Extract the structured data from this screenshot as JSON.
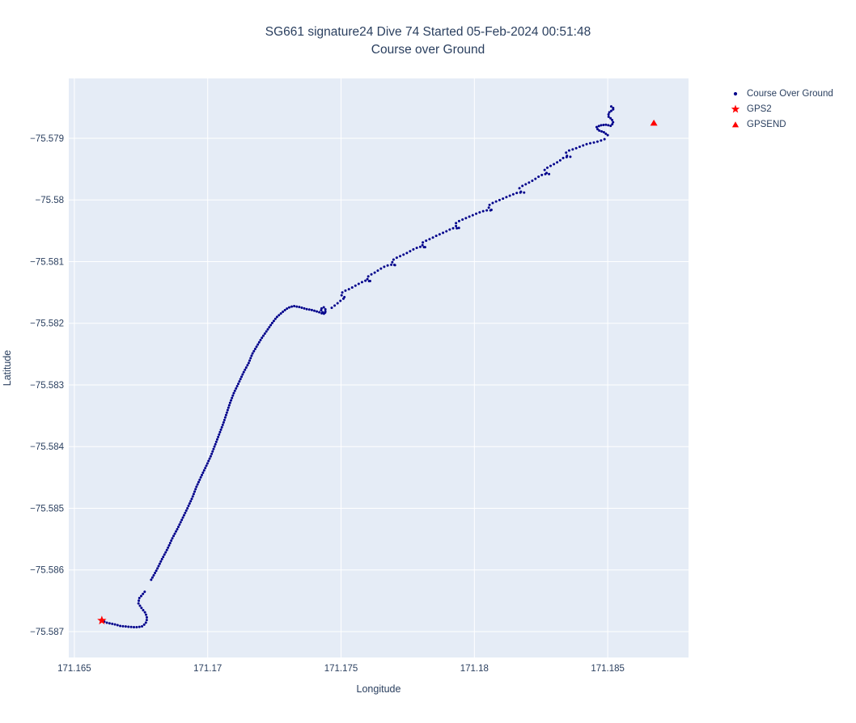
{
  "figure": {
    "title_line1": "SG661 signature24 Dive 74 Started 05-Feb-2024 00:51:48",
    "title_line2": "Course over Ground",
    "xaxis_title": "Longitude",
    "yaxis_title": "Latitude"
  },
  "colors": {
    "page_background": "#ffffff",
    "plot_background": "#e5ecf6",
    "gridline": "#ffffff",
    "text": "#2a3f5f",
    "track": "#00008b",
    "gps_marker": "#ff0000"
  },
  "legend": {
    "items": [
      {
        "label": "Course Over Ground",
        "marker": "dot",
        "color": "#00008b"
      },
      {
        "label": "GPS2",
        "marker": "star",
        "color": "#ff0000"
      },
      {
        "label": "GPSEND",
        "marker": "triangle-up",
        "color": "#ff0000"
      }
    ]
  },
  "chart_data": {
    "type": "scatter",
    "title": "SG661 signature24 Dive 74 Started 05-Feb-2024 00:51:48 — Course over Ground",
    "xlabel": "Longitude",
    "ylabel": "Latitude",
    "xlim": [
      171.16479,
      171.18803
    ],
    "ylim": [
      -75.58742,
      -75.57803
    ],
    "grid": true,
    "legend_position": "top-right-outside",
    "xticks": [
      171.165,
      171.17,
      171.175,
      171.18,
      171.185
    ],
    "xticklabels": [
      "171.165",
      "171.17",
      "171.175",
      "171.18",
      "171.185"
    ],
    "yticks": [
      -75.579,
      -75.58,
      -75.581,
      -75.582,
      -75.583,
      -75.584,
      -75.585,
      -75.586,
      -75.587
    ],
    "yticklabels": [
      "−75.579",
      "−75.58",
      "−75.581",
      "−75.582",
      "−75.583",
      "−75.584",
      "−75.585",
      "−75.586",
      "−75.587"
    ],
    "series": [
      {
        "name": "Course Over Ground",
        "marker": "dot",
        "color": "#00008b",
        "parts": [
          {
            "dot_spacing_px": 3.4,
            "points": [
              [
                171.16603,
                -75.58682
              ],
              [
                171.16624,
                -75.58686
              ],
              [
                171.16649,
                -75.58688
              ],
              [
                171.16673,
                -75.58691
              ],
              [
                171.167,
                -75.58692
              ],
              [
                171.16728,
                -75.58693
              ],
              [
                171.16752,
                -75.58692
              ],
              [
                171.16767,
                -75.58687
              ],
              [
                171.16773,
                -75.58679
              ],
              [
                171.16767,
                -75.5867
              ],
              [
                171.16752,
                -75.58662
              ],
              [
                171.1674,
                -75.58654
              ],
              [
                171.16743,
                -75.58646
              ],
              [
                171.16755,
                -75.5864
              ],
              [
                171.1677,
                -75.58632
              ]
            ]
          },
          {
            "dot_spacing_px": 3.2,
            "points": [
              [
                171.16788,
                -75.58616
              ],
              [
                171.1681,
                -75.58599
              ],
              [
                171.16828,
                -75.58583
              ],
              [
                171.16849,
                -75.58566
              ],
              [
                171.16867,
                -75.58549
              ],
              [
                171.16888,
                -75.58532
              ],
              [
                171.16907,
                -75.58515
              ],
              [
                171.16925,
                -75.58499
              ],
              [
                171.16943,
                -75.58482
              ],
              [
                171.16958,
                -75.58465
              ],
              [
                171.16976,
                -75.58448
              ],
              [
                171.16995,
                -75.58431
              ],
              [
                171.17013,
                -75.58414
              ],
              [
                171.17028,
                -75.58397
              ],
              [
                171.17043,
                -75.5838
              ],
              [
                171.17058,
                -75.58363
              ],
              [
                171.17071,
                -75.58346
              ],
              [
                171.17083,
                -75.5833
              ],
              [
                171.17098,
                -75.58313
              ],
              [
                171.17116,
                -75.58297
              ],
              [
                171.17134,
                -75.5828
              ],
              [
                171.17153,
                -75.58265
              ],
              [
                171.17168,
                -75.58249
              ],
              [
                171.17183,
                -75.58238
              ],
              [
                171.17201,
                -75.58225
              ],
              [
                171.17222,
                -75.58212
              ],
              [
                171.17241,
                -75.582
              ],
              [
                171.17259,
                -75.5819
              ],
              [
                171.1728,
                -75.58182
              ],
              [
                171.17301,
                -75.58175
              ],
              [
                171.17322,
                -75.58172
              ],
              [
                171.17347,
                -75.58174
              ],
              [
                171.17371,
                -75.58177
              ],
              [
                171.17395,
                -75.58179
              ],
              [
                171.17417,
                -75.58182
              ],
              [
                171.17435,
                -75.58185
              ],
              [
                171.17444,
                -75.58179
              ],
              [
                171.17435,
                -75.58174
              ],
              [
                171.17423,
                -75.58177
              ],
              [
                171.17429,
                -75.58182
              ],
              [
                171.17447,
                -75.58183
              ]
            ]
          },
          {
            "dot_spacing_px": 4.6,
            "points": [
              [
                171.17465,
                -75.58175
              ],
              [
                171.17483,
                -75.58169
              ],
              [
                171.17502,
                -75.58162
              ],
              [
                171.17517,
                -75.58158
              ],
              [
                171.17505,
                -75.58157
              ],
              [
                171.17499,
                -75.58152
              ],
              [
                171.17511,
                -75.58148
              ],
              [
                171.17529,
                -75.58145
              ],
              [
                171.1755,
                -75.5814
              ],
              [
                171.17571,
                -75.58135
              ],
              [
                171.1759,
                -75.58131
              ],
              [
                171.17614,
                -75.58132
              ],
              [
                171.17602,
                -75.58131
              ],
              [
                171.17596,
                -75.58126
              ],
              [
                171.17608,
                -75.58122
              ],
              [
                171.17626,
                -75.58118
              ],
              [
                171.17647,
                -75.58112
              ],
              [
                171.17668,
                -75.58107
              ],
              [
                171.17687,
                -75.58105
              ],
              [
                171.17708,
                -75.58106
              ],
              [
                171.17696,
                -75.58105
              ],
              [
                171.1769,
                -75.58099
              ],
              [
                171.17702,
                -75.58095
              ],
              [
                171.17723,
                -75.58091
              ],
              [
                171.17747,
                -75.58086
              ],
              [
                171.17772,
                -75.5808
              ],
              [
                171.17793,
                -75.58076
              ],
              [
                171.1782,
                -75.58077
              ],
              [
                171.17808,
                -75.58076
              ],
              [
                171.17802,
                -75.5807
              ],
              [
                171.17814,
                -75.58067
              ],
              [
                171.17835,
                -75.58063
              ],
              [
                171.17863,
                -75.58057
              ],
              [
                171.1789,
                -75.58052
              ],
              [
                171.17917,
                -75.58046
              ],
              [
                171.17945,
                -75.58046
              ],
              [
                171.17933,
                -75.58044
              ],
              [
                171.17927,
                -75.58039
              ],
              [
                171.17939,
                -75.58035
              ],
              [
                171.1796,
                -75.58031
              ],
              [
                171.17987,
                -75.58026
              ],
              [
                171.18014,
                -75.58021
              ],
              [
                171.18042,
                -75.58017
              ],
              [
                171.18069,
                -75.58017
              ],
              [
                171.18057,
                -75.58015
              ],
              [
                171.18051,
                -75.5801
              ],
              [
                171.18063,
                -75.58006
              ],
              [
                171.18084,
                -75.58002
              ],
              [
                171.18112,
                -75.57997
              ],
              [
                171.18139,
                -75.57992
              ],
              [
                171.18163,
                -75.57988
              ],
              [
                171.18187,
                -75.57988
              ],
              [
                171.18175,
                -75.57987
              ],
              [
                171.18169,
                -75.57981
              ],
              [
                171.18181,
                -75.57977
              ],
              [
                171.182,
                -75.57973
              ],
              [
                171.18221,
                -75.57968
              ],
              [
                171.18242,
                -75.57962
              ],
              [
                171.1826,
                -75.57958
              ],
              [
                171.18282,
                -75.57958
              ],
              [
                171.18269,
                -75.57956
              ],
              [
                171.18263,
                -75.57951
              ],
              [
                171.18276,
                -75.57947
              ],
              [
                171.18294,
                -75.57943
              ],
              [
                171.18315,
                -75.57938
              ],
              [
                171.18336,
                -75.57931
              ],
              [
                171.1836,
                -75.5793
              ],
              [
                171.18348,
                -75.57929
              ],
              [
                171.18342,
                -75.57924
              ],
              [
                171.18354,
                -75.5792
              ],
              [
                171.18376,
                -75.57917
              ],
              [
                171.184,
                -75.57913
              ],
              [
                171.18424,
                -75.57909
              ],
              [
                171.18448,
                -75.57907
              ],
              [
                171.18473,
                -75.57904
              ],
              [
                171.18491,
                -75.57901
              ]
            ]
          },
          {
            "dot_spacing_px": 3.0,
            "points": [
              [
                171.185,
                -75.57895
              ],
              [
                171.18485,
                -75.5789
              ],
              [
                171.18464,
                -75.57887
              ],
              [
                171.18458,
                -75.57882
              ],
              [
                171.18473,
                -75.57879
              ],
              [
                171.18494,
                -75.57878
              ],
              [
                171.18512,
                -75.5788
              ],
              [
                171.18521,
                -75.57875
              ],
              [
                171.18515,
                -75.57869
              ],
              [
                171.18503,
                -75.57865
              ],
              [
                171.18503,
                -75.57859
              ],
              [
                171.18515,
                -75.57855
              ],
              [
                171.18524,
                -75.57852
              ],
              [
                171.18512,
                -75.57848
              ]
            ]
          }
        ]
      },
      {
        "name": "GPS2",
        "marker": "star",
        "color": "#ff0000",
        "points": [
          [
            171.16603,
            -75.58682
          ]
        ]
      },
      {
        "name": "GPSEND",
        "marker": "triangle-up",
        "color": "#ff0000",
        "points": [
          [
            171.18673,
            -75.57875
          ]
        ]
      }
    ]
  }
}
